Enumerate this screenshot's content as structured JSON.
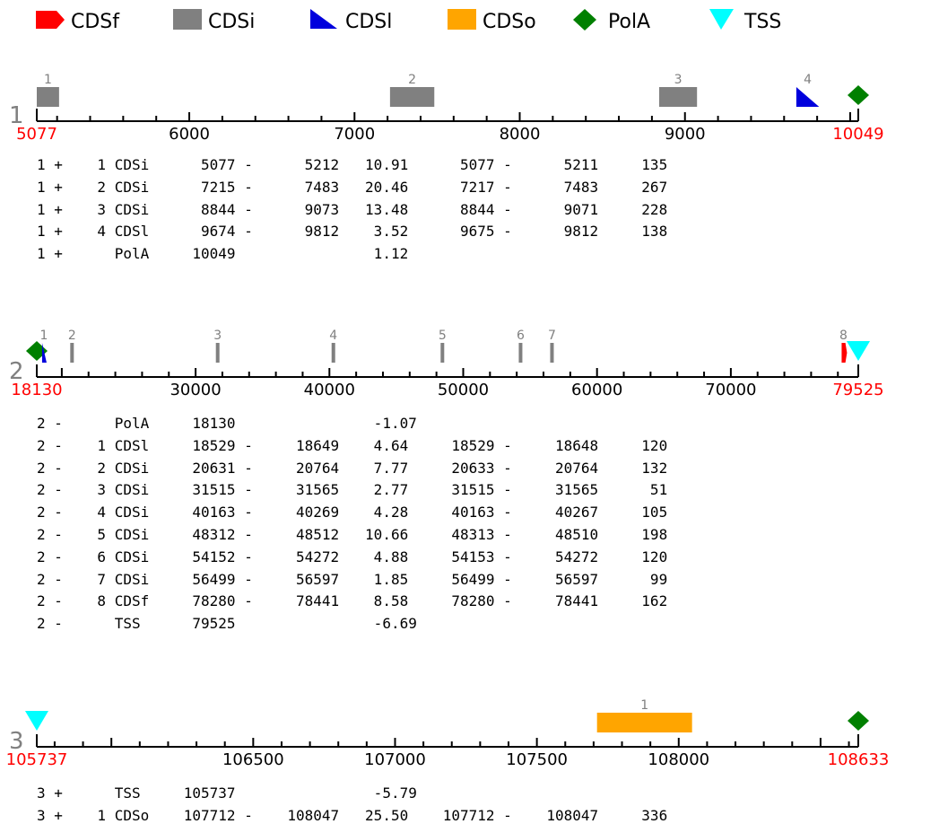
{
  "legend": [
    {
      "label": "CDSf",
      "color": "#ff0000",
      "shape": "pentagon-arrow"
    },
    {
      "label": "CDSi",
      "color": "#808080",
      "shape": "rect"
    },
    {
      "label": "CDSl",
      "color": "#0000dd",
      "shape": "right-triangle"
    },
    {
      "label": "CDSo",
      "color": "#ffa500",
      "shape": "rect"
    },
    {
      "label": "PolA",
      "color": "#008000",
      "shape": "diamond"
    },
    {
      "label": "TSS",
      "color": "#00ffff",
      "shape": "down-triangle"
    }
  ],
  "chart_data": [
    {
      "type": "gene-track",
      "track_number": "1",
      "range": [
        5077,
        10049
      ],
      "start_label": "5077",
      "end_label": "10049",
      "ticks": [
        "6000",
        "7000",
        "8000",
        "9000"
      ],
      "features": [
        {
          "type": "CDSi",
          "num": "1",
          "start": 5077,
          "end": 5212
        },
        {
          "type": "CDSi",
          "num": "2",
          "start": 7215,
          "end": 7483
        },
        {
          "type": "CDSi",
          "num": "3",
          "start": 8844,
          "end": 9073
        },
        {
          "type": "CDSl",
          "num": "4",
          "start": 9674,
          "end": 9812
        },
        {
          "type": "PolA",
          "num": "",
          "start": 10049,
          "end": 10049
        }
      ],
      "rows": [
        "1 +    1 CDSi      5077 -      5212   10.91      5077 -      5211     135",
        "1 +    2 CDSi      7215 -      7483   20.46      7217 -      7483     267",
        "1 +    3 CDSi      8844 -      9073   13.48      8844 -      9071     228",
        "1 +    4 CDSl      9674 -      9812    3.52      9675 -      9812     138",
        "1 +      PolA     10049                1.12"
      ]
    },
    {
      "type": "gene-track",
      "track_number": "2",
      "range": [
        18130,
        79525
      ],
      "start_label": "18130",
      "end_label": "79525",
      "ticks": [
        "30000",
        "40000",
        "50000",
        "60000",
        "70000"
      ],
      "features": [
        {
          "type": "PolA",
          "num": "",
          "start": 18130,
          "end": 18130
        },
        {
          "type": "CDSl",
          "num": "1",
          "start": 18529,
          "end": 18649
        },
        {
          "type": "CDSi",
          "num": "2",
          "start": 20631,
          "end": 20764
        },
        {
          "type": "CDSi",
          "num": "3",
          "start": 31515,
          "end": 31565
        },
        {
          "type": "CDSi",
          "num": "4",
          "start": 40163,
          "end": 40269
        },
        {
          "type": "CDSi",
          "num": "5",
          "start": 48312,
          "end": 48512
        },
        {
          "type": "CDSi",
          "num": "6",
          "start": 54152,
          "end": 54272
        },
        {
          "type": "CDSi",
          "num": "7",
          "start": 56499,
          "end": 56597
        },
        {
          "type": "CDSf",
          "num": "8",
          "start": 78280,
          "end": 78441
        },
        {
          "type": "TSS",
          "num": "",
          "start": 79525,
          "end": 79525
        }
      ],
      "rows": [
        "2 -      PolA     18130                -1.07",
        "2 -    1 CDSl     18529 -     18649    4.64     18529 -     18648     120",
        "2 -    2 CDSi     20631 -     20764    7.77     20633 -     20764     132",
        "2 -    3 CDSi     31515 -     31565    2.77     31515 -     31565      51",
        "2 -    4 CDSi     40163 -     40269    4.28     40163 -     40267     105",
        "2 -    5 CDSi     48312 -     48512   10.66     48313 -     48510     198",
        "2 -    6 CDSi     54152 -     54272    4.88     54153 -     54272     120",
        "2 -    7 CDSi     56499 -     56597    1.85     56499 -     56597      99",
        "2 -    8 CDSf     78280 -     78441    8.58     78280 -     78441     162",
        "2 -      TSS      79525                -6.69"
      ]
    },
    {
      "type": "gene-track",
      "track_number": "3",
      "range": [
        105737,
        108633
      ],
      "start_label": "105737",
      "end_label": "108633",
      "ticks": [
        "106500",
        "107000",
        "107500",
        "108000"
      ],
      "features": [
        {
          "type": "TSS",
          "num": "",
          "start": 105737,
          "end": 105737
        },
        {
          "type": "CDSo",
          "num": "1",
          "start": 107712,
          "end": 108047
        },
        {
          "type": "PolA",
          "num": "",
          "start": 108633,
          "end": 108633
        }
      ],
      "rows": [
        "3 +      TSS     105737                -5.79",
        "3 +    1 CDSo    107712 -    108047   25.50    107712 -    108047     336"
      ]
    }
  ]
}
